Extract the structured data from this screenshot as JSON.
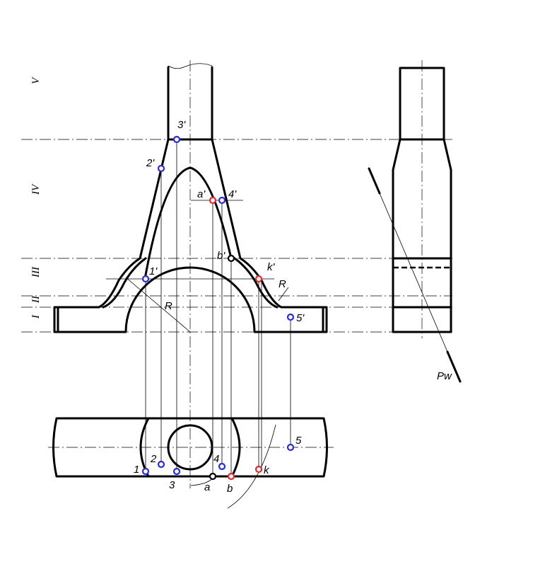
{
  "colors": {
    "line": "#000000",
    "marker_blue": "#2a2ae0",
    "marker_red": "#e02a2a",
    "marker_black": "#000000",
    "background": "#ffffff"
  },
  "zones": [
    "V",
    "IV",
    "III",
    "II",
    "I"
  ],
  "front_view_labels": {
    "p1": "1'",
    "p2": "2'",
    "p3": "3'",
    "p4": "4'",
    "p5": "5'",
    "a": "a'",
    "b": "b'",
    "k": "k'",
    "radius_left": "R",
    "radius_right": "R"
  },
  "plan_view_labels": {
    "p1": "1",
    "p2": "2",
    "p3": "3",
    "p4": "4",
    "p5": "5",
    "a": "a",
    "b": "b",
    "k": "k"
  },
  "plane_label": "Pw",
  "markers": [
    {
      "name": "point-3-prime-marker",
      "color": "blue"
    },
    {
      "name": "point-2-prime-marker",
      "color": "blue"
    },
    {
      "name": "point-a-prime-marker",
      "color": "red"
    },
    {
      "name": "point-4-prime-marker",
      "color": "blue"
    },
    {
      "name": "point-b-prime-marker",
      "color": "black"
    },
    {
      "name": "point-1-prime-marker",
      "color": "blue"
    },
    {
      "name": "point-k-prime-marker",
      "color": "red"
    },
    {
      "name": "point-5-prime-marker",
      "color": "blue"
    },
    {
      "name": "point-1-marker",
      "color": "blue"
    },
    {
      "name": "point-2-marker",
      "color": "blue"
    },
    {
      "name": "point-3-marker",
      "color": "blue"
    },
    {
      "name": "point-a-marker",
      "color": "black"
    },
    {
      "name": "point-4-marker",
      "color": "blue"
    },
    {
      "name": "point-b-marker",
      "color": "red"
    },
    {
      "name": "point-k-marker",
      "color": "red"
    },
    {
      "name": "point-5-marker",
      "color": "blue"
    }
  ]
}
